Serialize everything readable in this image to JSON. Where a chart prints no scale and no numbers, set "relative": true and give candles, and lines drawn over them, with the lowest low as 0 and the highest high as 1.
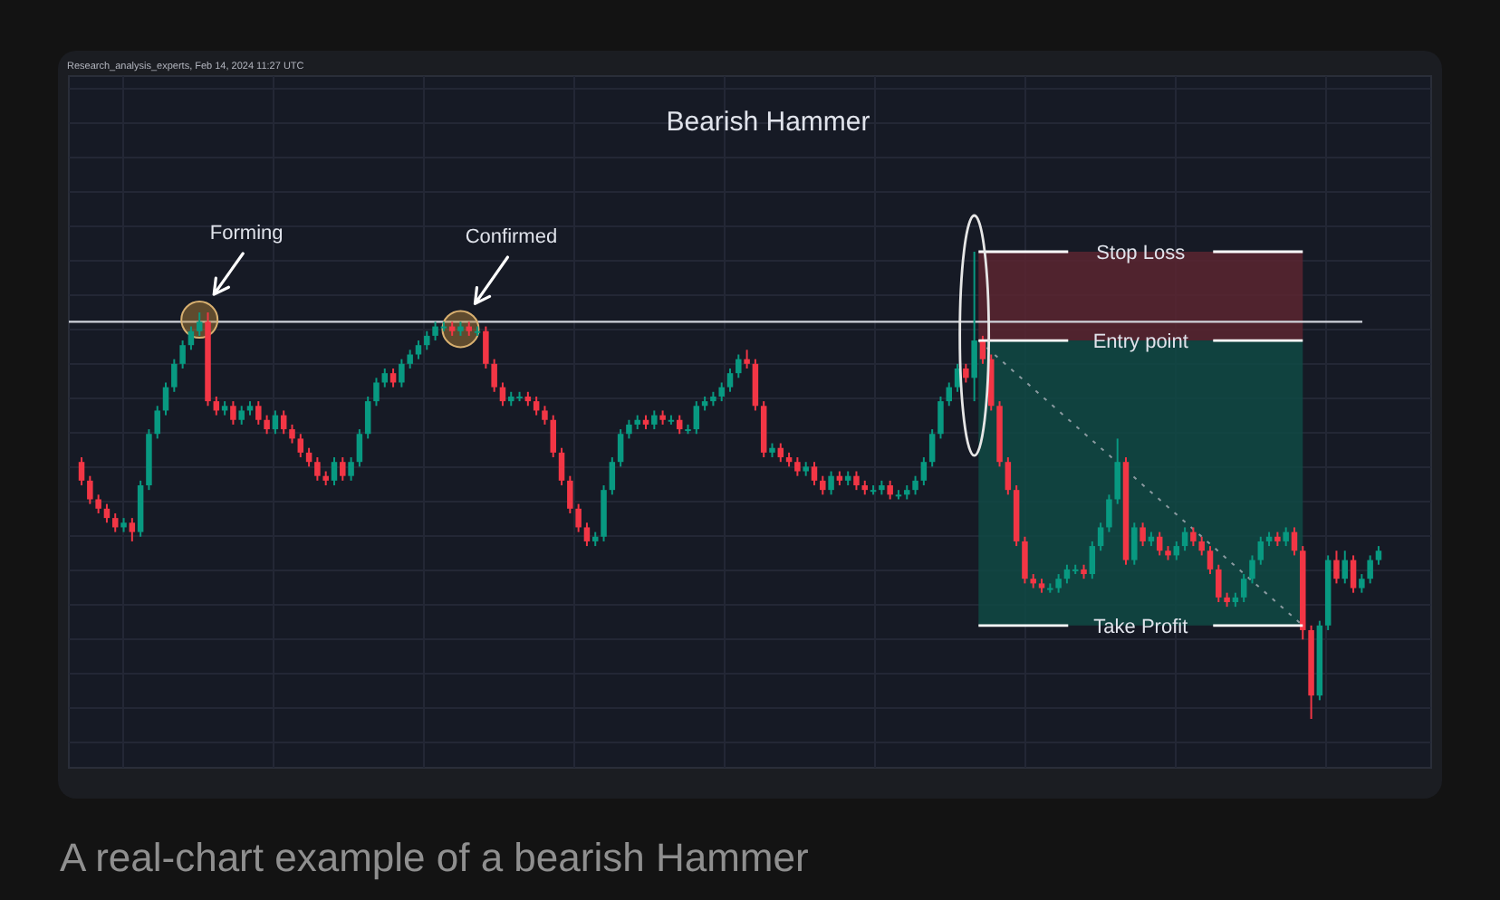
{
  "chart_data": {
    "type": "candlestick",
    "relative": true,
    "title": "Bearish Hammer",
    "categories": [
      null,
      null,
      null,
      null,
      null,
      null,
      null,
      null,
      null,
      null,
      null,
      null,
      null,
      null,
      null,
      null,
      null,
      null,
      null,
      null,
      null,
      null,
      null,
      null,
      null,
      null,
      null,
      null,
      null,
      null,
      null,
      null,
      null,
      null,
      null,
      null,
      null,
      null,
      null,
      null,
      null,
      null,
      null,
      null,
      null,
      null,
      null,
      null,
      null,
      null,
      null,
      null,
      null,
      null,
      null,
      null,
      null,
      null,
      null,
      null,
      null,
      null,
      null,
      null,
      null,
      null,
      null,
      null,
      null,
      null,
      null,
      null,
      null,
      null,
      null,
      null,
      null,
      null,
      null,
      null,
      null,
      null,
      null,
      null,
      null,
      null,
      null,
      null,
      null,
      null,
      null,
      null,
      null,
      null,
      null,
      null,
      null,
      null,
      null,
      null,
      null,
      null,
      null,
      null,
      null,
      null,
      null,
      null,
      null,
      null,
      null,
      null,
      null,
      null,
      null,
      null,
      null,
      null,
      null,
      null,
      null,
      null,
      null,
      null,
      null,
      null,
      null,
      null,
      null,
      null,
      null,
      null,
      null,
      null,
      null,
      null,
      null,
      null,
      null,
      null,
      null,
      null,
      null,
      null,
      null,
      null,
      null,
      null,
      null,
      null,
      null,
      null,
      null,
      null,
      null
    ],
    "ohlc": [
      [
        0.55,
        0.56,
        0.5,
        0.51
      ],
      [
        0.51,
        0.52,
        0.46,
        0.47
      ],
      [
        0.47,
        0.48,
        0.44,
        0.45
      ],
      [
        0.45,
        0.46,
        0.42,
        0.43
      ],
      [
        0.43,
        0.44,
        0.4,
        0.41
      ],
      [
        0.41,
        0.43,
        0.4,
        0.42
      ],
      [
        0.42,
        0.43,
        0.38,
        0.4
      ],
      [
        0.4,
        0.51,
        0.39,
        0.5
      ],
      [
        0.5,
        0.62,
        0.49,
        0.61
      ],
      [
        0.61,
        0.67,
        0.6,
        0.66
      ],
      [
        0.66,
        0.72,
        0.65,
        0.71
      ],
      [
        0.71,
        0.77,
        0.7,
        0.76
      ],
      [
        0.76,
        0.81,
        0.75,
        0.8
      ],
      [
        0.8,
        0.84,
        0.79,
        0.83
      ],
      [
        0.83,
        0.87,
        0.82,
        0.85
      ],
      [
        0.85,
        0.87,
        0.67,
        0.68
      ],
      [
        0.68,
        0.69,
        0.65,
        0.66
      ],
      [
        0.66,
        0.68,
        0.65,
        0.67
      ],
      [
        0.67,
        0.68,
        0.63,
        0.64
      ],
      [
        0.64,
        0.67,
        0.63,
        0.66
      ],
      [
        0.66,
        0.68,
        0.65,
        0.67
      ],
      [
        0.67,
        0.68,
        0.63,
        0.64
      ],
      [
        0.64,
        0.65,
        0.61,
        0.62
      ],
      [
        0.62,
        0.66,
        0.61,
        0.65
      ],
      [
        0.65,
        0.66,
        0.61,
        0.62
      ],
      [
        0.62,
        0.63,
        0.59,
        0.6
      ],
      [
        0.6,
        0.61,
        0.56,
        0.57
      ],
      [
        0.57,
        0.58,
        0.54,
        0.55
      ],
      [
        0.55,
        0.56,
        0.51,
        0.52
      ],
      [
        0.52,
        0.53,
        0.5,
        0.51
      ],
      [
        0.51,
        0.56,
        0.5,
        0.55
      ],
      [
        0.55,
        0.56,
        0.51,
        0.52
      ],
      [
        0.52,
        0.56,
        0.51,
        0.55
      ],
      [
        0.55,
        0.62,
        0.54,
        0.61
      ],
      [
        0.61,
        0.69,
        0.6,
        0.68
      ],
      [
        0.68,
        0.73,
        0.67,
        0.72
      ],
      [
        0.72,
        0.75,
        0.71,
        0.74
      ],
      [
        0.74,
        0.75,
        0.71,
        0.72
      ],
      [
        0.72,
        0.77,
        0.71,
        0.76
      ],
      [
        0.76,
        0.79,
        0.75,
        0.78
      ],
      [
        0.78,
        0.81,
        0.77,
        0.8
      ],
      [
        0.8,
        0.83,
        0.79,
        0.82
      ],
      [
        0.82,
        0.85,
        0.81,
        0.84
      ],
      [
        0.84,
        0.85,
        0.83,
        0.84
      ],
      [
        0.84,
        0.85,
        0.82,
        0.83
      ],
      [
        0.83,
        0.85,
        0.82,
        0.84
      ],
      [
        0.84,
        0.85,
        0.82,
        0.83
      ],
      [
        0.83,
        0.84,
        0.82,
        0.83
      ],
      [
        0.83,
        0.84,
        0.75,
        0.76
      ],
      [
        0.76,
        0.77,
        0.7,
        0.71
      ],
      [
        0.71,
        0.72,
        0.67,
        0.68
      ],
      [
        0.68,
        0.7,
        0.67,
        0.69
      ],
      [
        0.69,
        0.7,
        0.68,
        0.69
      ],
      [
        0.69,
        0.7,
        0.67,
        0.68
      ],
      [
        0.68,
        0.69,
        0.65,
        0.66
      ],
      [
        0.66,
        0.67,
        0.63,
        0.64
      ],
      [
        0.64,
        0.65,
        0.56,
        0.57
      ],
      [
        0.57,
        0.58,
        0.5,
        0.51
      ],
      [
        0.51,
        0.52,
        0.44,
        0.45
      ],
      [
        0.45,
        0.46,
        0.4,
        0.41
      ],
      [
        0.41,
        0.42,
        0.37,
        0.38
      ],
      [
        0.38,
        0.4,
        0.37,
        0.39
      ],
      [
        0.39,
        0.5,
        0.38,
        0.49
      ],
      [
        0.49,
        0.56,
        0.48,
        0.55
      ],
      [
        0.55,
        0.62,
        0.54,
        0.61
      ],
      [
        0.61,
        0.64,
        0.6,
        0.63
      ],
      [
        0.63,
        0.65,
        0.62,
        0.64
      ],
      [
        0.64,
        0.65,
        0.62,
        0.63
      ],
      [
        0.63,
        0.66,
        0.62,
        0.65
      ],
      [
        0.65,
        0.66,
        0.63,
        0.64
      ],
      [
        0.64,
        0.65,
        0.63,
        0.64
      ],
      [
        0.64,
        0.65,
        0.61,
        0.62
      ],
      [
        0.62,
        0.63,
        0.61,
        0.62
      ],
      [
        0.62,
        0.68,
        0.61,
        0.67
      ],
      [
        0.67,
        0.69,
        0.66,
        0.68
      ],
      [
        0.68,
        0.7,
        0.67,
        0.69
      ],
      [
        0.69,
        0.72,
        0.68,
        0.71
      ],
      [
        0.71,
        0.75,
        0.7,
        0.74
      ],
      [
        0.74,
        0.78,
        0.73,
        0.77
      ],
      [
        0.77,
        0.79,
        0.75,
        0.76
      ],
      [
        0.76,
        0.77,
        0.66,
        0.67
      ],
      [
        0.67,
        0.68,
        0.56,
        0.57
      ],
      [
        0.57,
        0.59,
        0.56,
        0.58
      ],
      [
        0.58,
        0.59,
        0.55,
        0.56
      ],
      [
        0.56,
        0.57,
        0.54,
        0.55
      ],
      [
        0.55,
        0.56,
        0.52,
        0.53
      ],
      [
        0.53,
        0.55,
        0.52,
        0.54
      ],
      [
        0.54,
        0.55,
        0.5,
        0.51
      ],
      [
        0.51,
        0.52,
        0.48,
        0.49
      ],
      [
        0.49,
        0.53,
        0.48,
        0.52
      ],
      [
        0.52,
        0.53,
        0.5,
        0.51
      ],
      [
        0.51,
        0.53,
        0.5,
        0.52
      ],
      [
        0.52,
        0.53,
        0.49,
        0.5
      ],
      [
        0.5,
        0.51,
        0.48,
        0.49
      ],
      [
        0.49,
        0.5,
        0.48,
        0.49
      ],
      [
        0.49,
        0.51,
        0.48,
        0.5
      ],
      [
        0.5,
        0.51,
        0.47,
        0.48
      ],
      [
        0.48,
        0.49,
        0.47,
        0.48
      ],
      [
        0.48,
        0.5,
        0.47,
        0.49
      ],
      [
        0.49,
        0.52,
        0.48,
        0.51
      ],
      [
        0.51,
        0.56,
        0.5,
        0.55
      ],
      [
        0.55,
        0.62,
        0.54,
        0.61
      ],
      [
        0.61,
        0.69,
        0.6,
        0.68
      ],
      [
        0.68,
        0.72,
        0.67,
        0.71
      ],
      [
        0.71,
        0.76,
        0.7,
        0.75
      ],
      [
        0.75,
        0.76,
        0.72,
        0.73
      ],
      [
        0.73,
        1.0,
        0.68,
        0.81
      ],
      [
        0.81,
        0.82,
        0.76,
        0.77
      ],
      [
        0.77,
        0.78,
        0.66,
        0.67
      ],
      [
        0.67,
        0.68,
        0.54,
        0.55
      ],
      [
        0.55,
        0.56,
        0.48,
        0.49
      ],
      [
        0.49,
        0.5,
        0.37,
        0.38
      ],
      [
        0.38,
        0.39,
        0.29,
        0.3
      ],
      [
        0.3,
        0.31,
        0.28,
        0.29
      ],
      [
        0.29,
        0.3,
        0.27,
        0.28
      ],
      [
        0.28,
        0.29,
        0.27,
        0.28
      ],
      [
        0.28,
        0.31,
        0.27,
        0.3
      ],
      [
        0.3,
        0.33,
        0.29,
        0.32
      ],
      [
        0.32,
        0.33,
        0.31,
        0.32
      ],
      [
        0.32,
        0.33,
        0.3,
        0.31
      ],
      [
        0.31,
        0.38,
        0.3,
        0.37
      ],
      [
        0.37,
        0.42,
        0.36,
        0.41
      ],
      [
        0.41,
        0.48,
        0.4,
        0.47
      ],
      [
        0.47,
        0.6,
        0.46,
        0.55
      ],
      [
        0.55,
        0.56,
        0.33,
        0.34
      ],
      [
        0.34,
        0.42,
        0.33,
        0.41
      ],
      [
        0.41,
        0.42,
        0.37,
        0.38
      ],
      [
        0.38,
        0.4,
        0.37,
        0.39
      ],
      [
        0.39,
        0.4,
        0.35,
        0.36
      ],
      [
        0.36,
        0.37,
        0.34,
        0.35
      ],
      [
        0.35,
        0.38,
        0.34,
        0.37
      ],
      [
        0.37,
        0.41,
        0.36,
        0.4
      ],
      [
        0.4,
        0.41,
        0.37,
        0.38
      ],
      [
        0.38,
        0.39,
        0.35,
        0.36
      ],
      [
        0.36,
        0.37,
        0.31,
        0.32
      ],
      [
        0.32,
        0.33,
        0.25,
        0.26
      ],
      [
        0.26,
        0.27,
        0.24,
        0.25
      ],
      [
        0.25,
        0.27,
        0.24,
        0.26
      ],
      [
        0.26,
        0.31,
        0.25,
        0.3
      ],
      [
        0.3,
        0.35,
        0.29,
        0.34
      ],
      [
        0.34,
        0.39,
        0.33,
        0.38
      ],
      [
        0.38,
        0.4,
        0.37,
        0.39
      ],
      [
        0.39,
        0.4,
        0.37,
        0.38
      ],
      [
        0.38,
        0.41,
        0.37,
        0.4
      ],
      [
        0.4,
        0.41,
        0.35,
        0.36
      ],
      [
        0.36,
        0.37,
        0.17,
        0.19
      ],
      [
        0.19,
        0.2,
        0,
        0.05
      ],
      [
        0.05,
        0.21,
        0.04,
        0.2
      ],
      [
        0.2,
        0.35,
        0.19,
        0.34
      ],
      [
        0.34,
        0.36,
        0.29,
        0.3
      ],
      [
        0.3,
        0.36,
        0.29,
        0.34
      ],
      [
        0.34,
        0.35,
        0.27,
        0.28
      ],
      [
        0.28,
        0.31,
        0.27,
        0.3
      ],
      [
        0.3,
        0.35,
        0.29,
        0.34
      ],
      [
        0.34,
        0.37,
        0.33,
        0.36
      ]
    ],
    "ref_lines": [
      {
        "axis": "y",
        "value": 0.85,
        "color": "#d1d4dc"
      },
      {
        "axis": "y",
        "value": 1.0,
        "label": "Stop Loss",
        "color": "#ffffff"
      },
      {
        "axis": "y",
        "value": 0.81,
        "label": "Entry point",
        "color": "#ffffff"
      },
      {
        "axis": "y",
        "value": 0.2,
        "label": "Take Profit",
        "color": "#ffffff"
      }
    ],
    "annotations": [
      "Research_analysis_experts, Feb 14, 2024 11:27 UTC",
      "Forming",
      "Confirmed",
      "A real-chart example of a bearish Hammer"
    ],
    "grid": true
  }
}
